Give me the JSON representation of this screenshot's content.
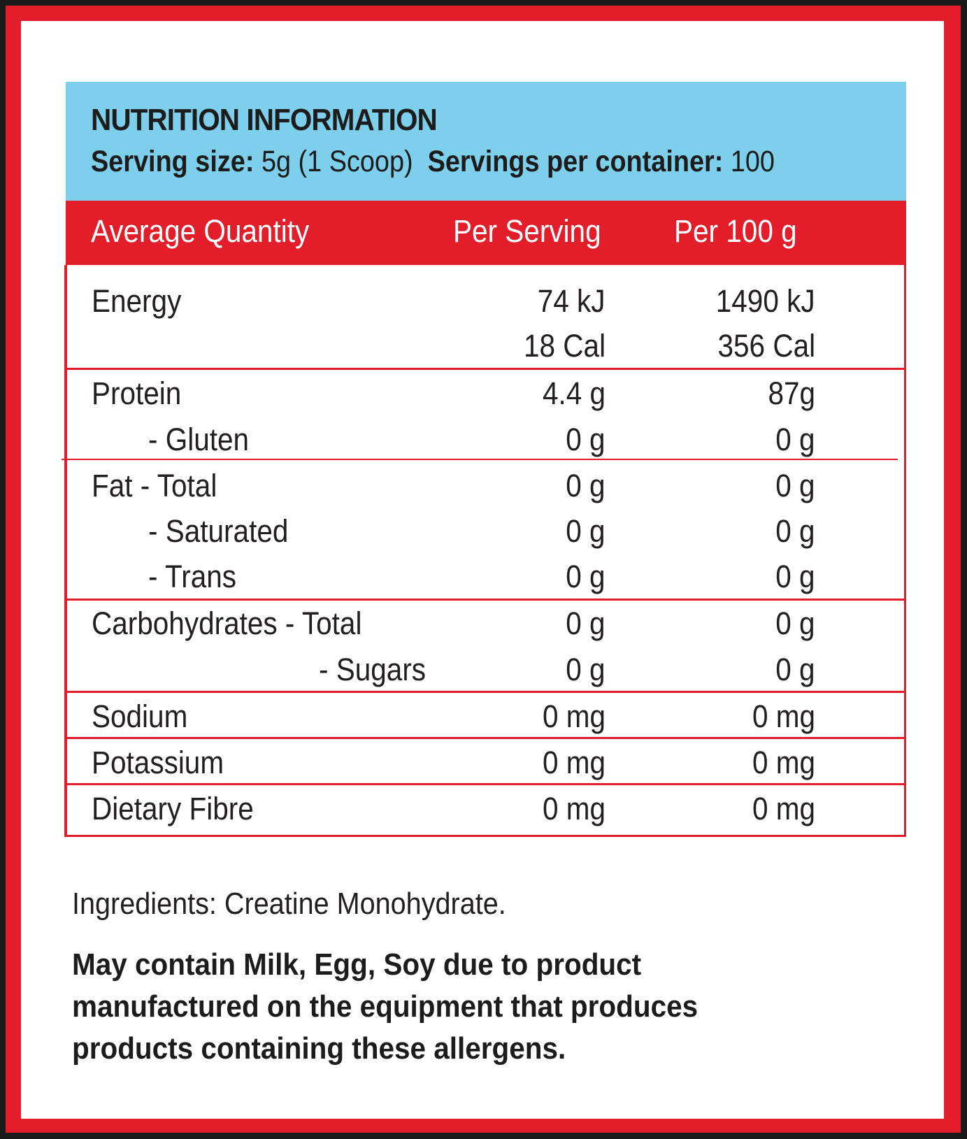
{
  "header": {
    "title": "NUTRITION INFORMATION",
    "serving_size_label": "Serving size:",
    "serving_size_value": "5g (1 Scoop)",
    "servings_label": "Servings per container:",
    "servings_value": "100"
  },
  "columns": {
    "name": "Average Quantity",
    "per_serving": "Per Serving",
    "per_100g": "Per 100 g"
  },
  "rows": {
    "energy": {
      "name": "Energy",
      "kj_serving": "74 kJ",
      "kj_100g": "1490 kJ",
      "cal_serving": "18 Cal",
      "cal_100g": "356 Cal"
    },
    "protein": {
      "name": "Protein",
      "serving": "4.4 g",
      "per100": "87g"
    },
    "gluten": {
      "name": "-  Gluten",
      "serving": "0 g",
      "per100": "0 g"
    },
    "fat_total": {
      "name": "Fat -  Total",
      "serving": "0 g",
      "per100": "0 g"
    },
    "fat_saturated": {
      "name": "-  Saturated",
      "serving": "0 g",
      "per100": "0 g"
    },
    "fat_trans": {
      "name": "-  Trans",
      "serving": "0 g",
      "per100": "0 g"
    },
    "carb_total": {
      "name": "Carbohydrates - Total",
      "serving": "0 g",
      "per100": "0 g"
    },
    "carb_sugars": {
      "name": "- Sugars",
      "serving": "0 g",
      "per100": "0 g"
    },
    "sodium": {
      "name": "Sodium",
      "serving": "0 mg",
      "per100": "0 mg"
    },
    "potassium": {
      "name": "Potassium",
      "serving": "0 mg",
      "per100": "0 mg"
    },
    "fibre": {
      "name": "Dietary Fibre",
      "serving": "0 mg",
      "per100": "0 mg"
    }
  },
  "ingredients": "Ingredients: Creatine Monohydrate.",
  "allergen_lines": [
    "May contain Milk, Egg, Soy due to product",
    "manufactured on the equipment that produces",
    "products containing these allergens."
  ],
  "colors": {
    "frame": "#e31e2a",
    "header_bg": "#7dcfec",
    "border_outer": "#1a1a1a"
  }
}
